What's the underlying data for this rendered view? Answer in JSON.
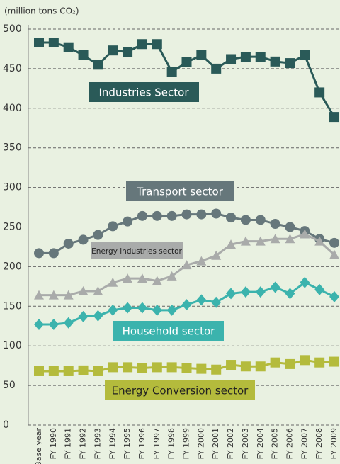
{
  "chart_data": {
    "type": "line",
    "y_axis_label": "(million tons CO₂)",
    "categories": [
      "Base year",
      "FY 1990",
      "FY 1991",
      "FY 1992",
      "FY 1993",
      "FY 1994",
      "FY 1995",
      "FY 1996",
      "FY 1997",
      "FY 1998",
      "FY 1999",
      "FY 2000",
      "FY 2001",
      "FY 2002",
      "FY 2003",
      "FY 2004",
      "FY 2005",
      "FY 2006",
      "FY 2007",
      "FY 2008",
      "FY 2009"
    ],
    "series": [
      {
        "name": "Industries Sector",
        "color": "#2a5a58",
        "marker": "square",
        "values": [
          483,
          483,
          477,
          467,
          455,
          473,
          471,
          481,
          481,
          446,
          458,
          467,
          450,
          462,
          465,
          465,
          459,
          457,
          467,
          420,
          389
        ]
      },
      {
        "name": "Transport sector",
        "color": "#66777b",
        "marker": "circle",
        "values": [
          217,
          217,
          229,
          234,
          240,
          251,
          257,
          264,
          264,
          264,
          266,
          266,
          267,
          262,
          259,
          259,
          254,
          250,
          245,
          235,
          230
        ]
      },
      {
        "name": "Energy industries sector",
        "color": "#a9abaa",
        "marker": "triangle",
        "values": [
          164,
          164,
          164,
          169,
          169,
          180,
          185,
          185,
          182,
          188,
          202,
          207,
          214,
          228,
          232,
          232,
          235,
          235,
          241,
          232,
          215
        ]
      },
      {
        "name": "Household sector",
        "color": "#3bb3ad",
        "marker": "diamond",
        "values": [
          127,
          127,
          129,
          137,
          138,
          145,
          148,
          148,
          145,
          145,
          152,
          158,
          155,
          166,
          168,
          168,
          174,
          166,
          180,
          171,
          162
        ]
      },
      {
        "name": "Energy Conversion sector",
        "color": "#b4bb3c",
        "marker": "square",
        "values": [
          68,
          68,
          68,
          69,
          68,
          73,
          73,
          72,
          73,
          73,
          72,
          71,
          70,
          76,
          74,
          74,
          79,
          77,
          82,
          79,
          80
        ]
      }
    ],
    "ylim": [
      0,
      500
    ],
    "yticks": [
      0,
      50,
      100,
      150,
      200,
      250,
      300,
      350,
      400,
      450,
      500
    ],
    "grid": true
  }
}
